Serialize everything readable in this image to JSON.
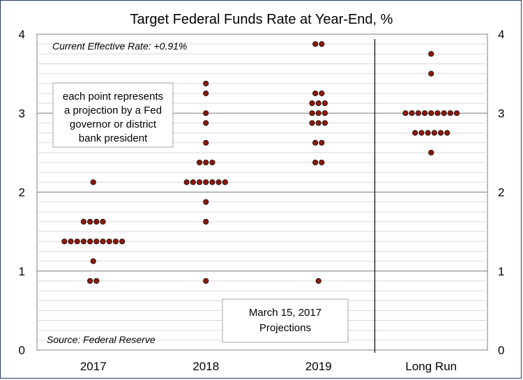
{
  "chart_data": {
    "type": "scatter",
    "title": "Target Federal Funds Rate at Year-End, %",
    "categories": [
      "2017",
      "2018",
      "2019",
      "Long Run"
    ],
    "ylim": [
      0,
      4
    ],
    "yticks": [
      "0",
      "1",
      "2",
      "3",
      "4"
    ],
    "minor_step": 0.125,
    "grid": true,
    "annotations": {
      "current_rate": "Current Effective Rate: +0.91%",
      "source": "Source: Federal Reserve",
      "legend_box": [
        "each point represents",
        "a projection by a Fed",
        "governor or district",
        "bank president"
      ],
      "date_box": [
        "March 15, 2017",
        "Projections"
      ]
    },
    "series": [
      {
        "category": "2017",
        "levels": [
          {
            "y": 2.125,
            "count": 1
          },
          {
            "y": 1.625,
            "count": 4
          },
          {
            "y": 1.375,
            "count": 10
          },
          {
            "y": 1.125,
            "count": 1
          },
          {
            "y": 0.875,
            "count": 2
          }
        ]
      },
      {
        "category": "2018",
        "levels": [
          {
            "y": 3.375,
            "count": 1
          },
          {
            "y": 3.25,
            "count": 1
          },
          {
            "y": 3.0,
            "count": 1
          },
          {
            "y": 2.875,
            "count": 1
          },
          {
            "y": 2.625,
            "count": 1
          },
          {
            "y": 2.375,
            "count": 3
          },
          {
            "y": 2.125,
            "count": 7
          },
          {
            "y": 1.875,
            "count": 1
          },
          {
            "y": 1.625,
            "count": 1
          },
          {
            "y": 0.875,
            "count": 1
          }
        ]
      },
      {
        "category": "2019",
        "levels": [
          {
            "y": 3.875,
            "count": 2
          },
          {
            "y": 3.25,
            "count": 2
          },
          {
            "y": 3.125,
            "count": 3
          },
          {
            "y": 3.0,
            "count": 3
          },
          {
            "y": 2.875,
            "count": 3
          },
          {
            "y": 2.625,
            "count": 2
          },
          {
            "y": 2.375,
            "count": 2
          },
          {
            "y": 0.875,
            "count": 1
          }
        ]
      },
      {
        "category": "Long Run",
        "levels": [
          {
            "y": 3.75,
            "count": 1
          },
          {
            "y": 3.5,
            "count": 1
          },
          {
            "y": 3.0,
            "count": 9
          },
          {
            "y": 2.75,
            "count": 6
          },
          {
            "y": 2.5,
            "count": 1
          }
        ]
      }
    ],
    "colors": {
      "dot_fill": "#8b1a0e",
      "dot_stroke": "#000000",
      "major_grid": "#7f7f7f",
      "minor_grid": "#d9d9d9",
      "divider": "#000000",
      "border": "#1f3864"
    }
  }
}
